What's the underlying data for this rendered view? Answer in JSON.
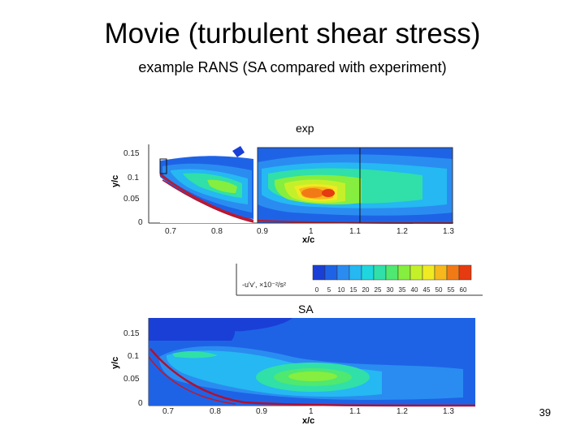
{
  "slide": {
    "title": "Movie (turbulent shear stress)",
    "subtitle": "example RANS (SA compared with experiment)",
    "page_number": "39"
  },
  "top_plot": {
    "label": "exp",
    "ylabel": "y/c",
    "xlabel": "x/c",
    "yticks": [
      "0.15",
      "0.1",
      "0.05",
      "0"
    ],
    "xticks": [
      "0.7",
      "0.8",
      "0.9",
      "1",
      "1.1",
      "1.2",
      "1.3"
    ]
  },
  "colorbar": {
    "label": "-u'v', ×10⁻²/s²",
    "ticks": [
      "0",
      "5",
      "10",
      "15",
      "20",
      "25",
      "30",
      "35",
      "40",
      "45",
      "50",
      "55",
      "60"
    ],
    "colors": [
      "#1a3fd6",
      "#1e63e6",
      "#2a8cf0",
      "#25b8f2",
      "#1fd6de",
      "#30e0a8",
      "#4fe870",
      "#86ee3e",
      "#c4f02a",
      "#f0ea22",
      "#f6b81c",
      "#f27a16",
      "#e63a10"
    ]
  },
  "bottom_plot": {
    "label": "SA",
    "ylabel": "y/c",
    "xlabel": "x/c",
    "yticks": [
      "0.15",
      "0.1",
      "0.05",
      "0"
    ],
    "xticks": [
      "0.7",
      "0.8",
      "0.9",
      "1",
      "1.1",
      "1.2",
      "1.3"
    ]
  }
}
